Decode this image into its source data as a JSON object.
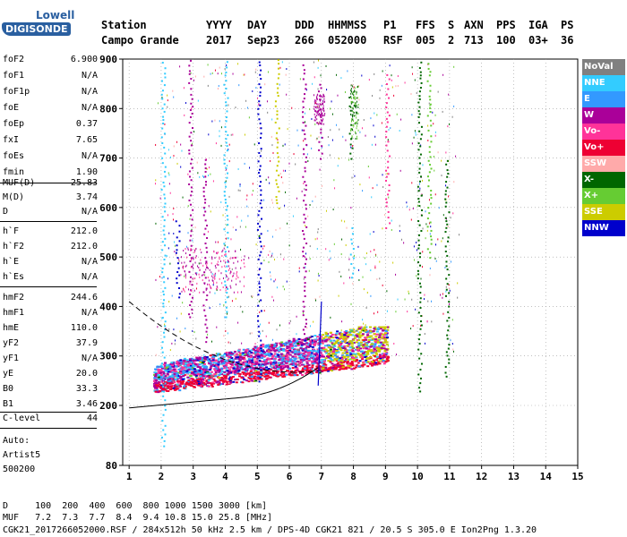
{
  "logo": {
    "top": "Lowell",
    "main": "DIGISONDE"
  },
  "header": {
    "row1": [
      "Station",
      "YYYY",
      "DAY",
      "DDD",
      "HHMMSS",
      "P1",
      "FFS",
      "S",
      "AXN",
      "PPS",
      "IGA",
      "PS"
    ],
    "row2": [
      "Campo Grande",
      "2017",
      "Sep23",
      "266",
      "052000",
      "RSF",
      "005",
      "2",
      "713",
      "100",
      "03+",
      "36"
    ]
  },
  "params": [
    {
      "label": "foF2",
      "value": "6.900"
    },
    {
      "label": "foF1",
      "value": "N/A"
    },
    {
      "label": "foF1p",
      "value": "N/A"
    },
    {
      "label": "foE",
      "value": "N/A"
    },
    {
      "label": "foEp",
      "value": "0.37"
    },
    {
      "label": "fxI",
      "value": "7.65"
    },
    {
      "label": "foEs",
      "value": "N/A"
    },
    {
      "label": "fmin",
      "value": "1.90"
    },
    {
      "label": "MUF(D)",
      "value": "25.83"
    },
    {
      "label": "M(D)",
      "value": "3.74"
    },
    {
      "label": "D",
      "value": "N/A"
    },
    {
      "label": "h`F",
      "value": "212.0"
    },
    {
      "label": "h`F2",
      "value": "212.0"
    },
    {
      "label": "h`E",
      "value": "N/A"
    },
    {
      "label": "h`Es",
      "value": "N/A"
    },
    {
      "label": "hmF2",
      "value": "244.6"
    },
    {
      "label": "hmF1",
      "value": "N/A"
    },
    {
      "label": "hmE",
      "value": "110.0"
    },
    {
      "label": "yF2",
      "value": "37.9"
    },
    {
      "label": "yF1",
      "value": "N/A"
    },
    {
      "label": "yE",
      "value": "20.0"
    },
    {
      "label": "B0",
      "value": "33.3"
    },
    {
      "label": "B1",
      "value": "3.46"
    },
    {
      "label": "C-level",
      "value": "44"
    }
  ],
  "auto": {
    "line1": "Auto:",
    "line2": "Artist5",
    "line3": "500200"
  },
  "legend": [
    {
      "label": "NoVal",
      "color": "#808080"
    },
    {
      "label": "NNE",
      "color": "#33ccff"
    },
    {
      "label": "E",
      "color": "#3399ff"
    },
    {
      "label": "W",
      "color": "#aa0099"
    },
    {
      "label": "Vo-",
      "color": "#ff3399"
    },
    {
      "label": "Vo+",
      "color": "#ee0033"
    },
    {
      "label": "SSW",
      "color": "#ffaaaa"
    },
    {
      "label": "X-",
      "color": "#006600"
    },
    {
      "label": "X+",
      "color": "#66cc33"
    },
    {
      "label": "SSE",
      "color": "#cccc00"
    },
    {
      "label": "NNW",
      "color": "#0000cc"
    }
  ],
  "axes": {
    "x_ticks": [
      "1",
      "2",
      "3",
      "4",
      "5",
      "6",
      "7",
      "8",
      "9",
      "10",
      "11",
      "12",
      "13",
      "14",
      "15"
    ],
    "y_ticks": [
      "80",
      "200",
      "300",
      "400",
      "500",
      "600",
      "700",
      "800",
      "900"
    ],
    "xlim": [
      0.8,
      15
    ],
    "ylim": [
      80,
      900
    ]
  },
  "footer": {
    "d_line": "D     100  200  400  600  800 1000 1500 3000 [km]",
    "muf_line": "MUF   7.2  7.3  7.7  8.4  9.4 10.8 15.0 25.8 [MHz]",
    "file_line": "CGK21_2017266052000.RSF / 284x512h 50 kHz 2.5 km / DPS-4D CGK21 821 / 20.5 S 305.0 E Ion2Png 1.3.20"
  }
}
